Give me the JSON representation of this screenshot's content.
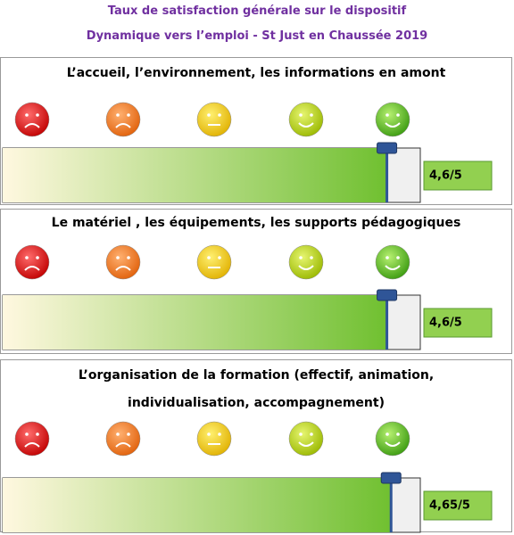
{
  "header": {
    "lines": [
      "Taux de satisfaction générale sur le dispositif",
      "Dynamique vers l’emploi - St Just en Chaussée 2019"
    ]
  },
  "chart_data": [
    {
      "type": "gauge",
      "title": "L’accueil, l’environnement, les informations en amont",
      "value": 4.6,
      "value_label": "4,6/5",
      "xlim": [
        0,
        5
      ]
    },
    {
      "type": "gauge",
      "title": "Le matériel , les équipements, les supports pédagogiques",
      "value": 4.6,
      "value_label": "4,6/5",
      "xlim": [
        0,
        5
      ]
    },
    {
      "type": "gauge",
      "title": "L’organisation de la formation (effectif, animation, individualisation, accompagnement)",
      "value": 4.65,
      "value_label": "4,65/5",
      "xlim": [
        0,
        5
      ]
    }
  ]
}
